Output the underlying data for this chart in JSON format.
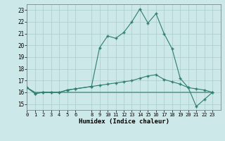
{
  "xlabel": "Humidex (Indice chaleur)",
  "xlim": [
    0,
    24
  ],
  "ylim": [
    14.5,
    23.5
  ],
  "yticks": [
    15,
    16,
    17,
    18,
    19,
    20,
    21,
    22,
    23
  ],
  "xtick_positions": [
    0,
    1,
    2,
    3,
    4,
    5,
    6,
    8,
    9,
    10,
    11,
    12,
    13,
    14,
    15,
    16,
    17,
    18,
    19,
    20,
    21,
    22,
    23
  ],
  "xtick_labels": [
    "0",
    "1",
    "2",
    "3",
    "4",
    "5",
    "6",
    "8",
    "9",
    "10",
    "11",
    "12",
    "13",
    "14",
    "15",
    "16",
    "17",
    "18",
    "19",
    "20",
    "21",
    "22",
    "23"
  ],
  "bg_color": "#cce8e8",
  "line_color": "#2e7d6e",
  "grid_color": "#aacccc",
  "line1_x": [
    0,
    1,
    2,
    3,
    4,
    5,
    6,
    8,
    9,
    10,
    11,
    12,
    13,
    14,
    15,
    16,
    17,
    18,
    19,
    20,
    21,
    22,
    23
  ],
  "line1_y": [
    16.4,
    15.9,
    16.0,
    16.0,
    16.0,
    16.2,
    16.3,
    16.5,
    19.8,
    20.8,
    20.6,
    21.1,
    22.0,
    23.1,
    21.9,
    22.7,
    21.0,
    19.7,
    17.2,
    16.4,
    14.8,
    15.4,
    16.0
  ],
  "line2_x": [
    0,
    1,
    2,
    3,
    4,
    5,
    6,
    8,
    9,
    10,
    11,
    12,
    13,
    14,
    15,
    16,
    17,
    18,
    19,
    20,
    21,
    22,
    23
  ],
  "line2_y": [
    16.4,
    15.9,
    16.0,
    16.0,
    16.0,
    16.2,
    16.3,
    16.5,
    16.6,
    16.7,
    16.8,
    16.9,
    17.0,
    17.2,
    17.4,
    17.5,
    17.1,
    16.9,
    16.7,
    16.4,
    16.3,
    16.2,
    16.0
  ],
  "line3_x": [
    0,
    1,
    2,
    3,
    4,
    5,
    6,
    7,
    8,
    9,
    10,
    11,
    12,
    13,
    14,
    15,
    16,
    17,
    18,
    19,
    20,
    21,
    22,
    23
  ],
  "line3_y": [
    16.4,
    16.0,
    16.0,
    16.0,
    16.0,
    16.0,
    16.0,
    16.0,
    16.0,
    16.0,
    16.0,
    16.0,
    16.0,
    16.0,
    16.0,
    16.0,
    16.0,
    16.0,
    16.0,
    16.0,
    16.0,
    16.0,
    16.0,
    16.0
  ]
}
